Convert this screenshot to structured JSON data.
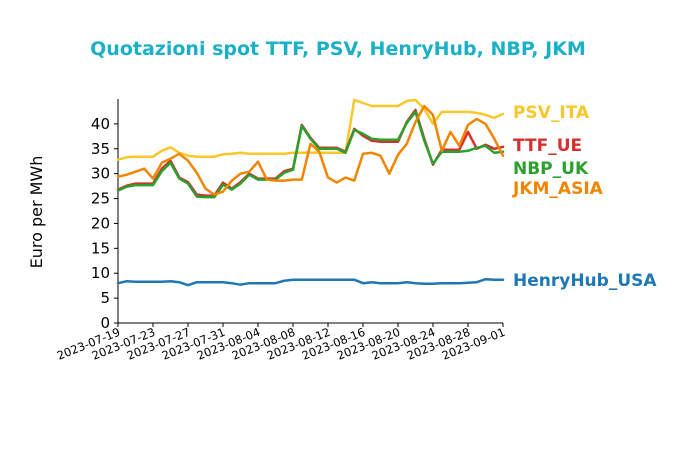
{
  "chart_data": {
    "type": "line",
    "title": "Quotazioni spot TTF, PSV, HenryHub, NBP, JKM",
    "xlabel": "",
    "ylabel": "Euro per MWh",
    "ylim": [
      0,
      45
    ],
    "yticks": [
      0,
      5,
      10,
      15,
      20,
      25,
      30,
      35,
      40
    ],
    "xlim": [
      "2023-07-19",
      "2023-09-01"
    ],
    "xticks": [
      "2023-07-19",
      "2023-07-23",
      "2023-07-27",
      "2023-07-31",
      "2023-08-04",
      "2023-08-08",
      "2023-08-12",
      "2023-08-16",
      "2023-08-20",
      "2023-08-24",
      "2023-08-28",
      "2023-09-01"
    ],
    "grid": false,
    "legend": "right-end-labels",
    "colors": {
      "title": "#1ab0c8",
      "PSV_ITA": "#f9c72a",
      "TTF_UE": "#d62f2f",
      "NBP_UK": "#2ca02c",
      "JKM_ASIA": "#f28500",
      "HenryHub_USA": "#1f77b4"
    },
    "series": [
      {
        "name": "PSV_ITA",
        "points": [
          [
            "2023-07-19",
            32.8
          ],
          [
            "2023-07-20",
            33.3
          ],
          [
            "2023-07-21",
            33.4
          ],
          [
            "2023-07-22",
            33.4
          ],
          [
            "2023-07-23",
            33.4
          ],
          [
            "2023-07-24",
            34.6
          ],
          [
            "2023-07-25",
            35.3
          ],
          [
            "2023-07-26",
            34.2
          ],
          [
            "2023-07-27",
            33.6
          ],
          [
            "2023-07-28",
            33.4
          ],
          [
            "2023-07-29",
            33.4
          ],
          [
            "2023-07-30",
            33.4
          ],
          [
            "2023-07-31",
            33.9
          ],
          [
            "2023-08-01",
            34.0
          ],
          [
            "2023-08-02",
            34.2
          ],
          [
            "2023-08-03",
            34.0
          ],
          [
            "2023-08-04",
            34.0
          ],
          [
            "2023-08-05",
            34.0
          ],
          [
            "2023-08-06",
            34.0
          ],
          [
            "2023-08-07",
            34.0
          ],
          [
            "2023-08-08",
            34.2
          ],
          [
            "2023-08-09",
            34.2
          ],
          [
            "2023-08-10",
            34.2
          ],
          [
            "2023-08-11",
            34.2
          ],
          [
            "2023-08-12",
            34.2
          ],
          [
            "2023-08-13",
            34.2
          ],
          [
            "2023-08-14",
            34.2
          ],
          [
            "2023-08-15",
            44.8
          ],
          [
            "2023-08-16",
            44.2
          ],
          [
            "2023-08-17",
            43.6
          ],
          [
            "2023-08-18",
            43.6
          ],
          [
            "2023-08-19",
            43.6
          ],
          [
            "2023-08-20",
            43.6
          ],
          [
            "2023-08-21",
            44.6
          ],
          [
            "2023-08-22",
            44.8
          ],
          [
            "2023-08-23",
            43.0
          ],
          [
            "2023-08-24",
            40.0
          ],
          [
            "2023-08-25",
            42.4
          ],
          [
            "2023-08-26",
            42.4
          ],
          [
            "2023-08-27",
            42.4
          ],
          [
            "2023-08-28",
            42.4
          ],
          [
            "2023-08-29",
            42.2
          ],
          [
            "2023-08-30",
            41.8
          ],
          [
            "2023-08-31",
            41.2
          ],
          [
            "2023-09-01",
            42.0
          ]
        ]
      },
      {
        "name": "TTF_UE",
        "points": [
          [
            "2023-07-19",
            26.8
          ],
          [
            "2023-07-20",
            27.6
          ],
          [
            "2023-07-21",
            28.0
          ],
          [
            "2023-07-22",
            28.0
          ],
          [
            "2023-07-23",
            28.0
          ],
          [
            "2023-07-24",
            31.0
          ],
          [
            "2023-07-25",
            32.6
          ],
          [
            "2023-07-26",
            29.2
          ],
          [
            "2023-07-27",
            28.3
          ],
          [
            "2023-07-28",
            25.8
          ],
          [
            "2023-07-29",
            25.6
          ],
          [
            "2023-07-30",
            25.6
          ],
          [
            "2023-07-31",
            28.2
          ],
          [
            "2023-08-01",
            27.0
          ],
          [
            "2023-08-02",
            28.3
          ],
          [
            "2023-08-03",
            30.0
          ],
          [
            "2023-08-04",
            29.0
          ],
          [
            "2023-08-05",
            29.0
          ],
          [
            "2023-08-06",
            29.0
          ],
          [
            "2023-08-07",
            30.5
          ],
          [
            "2023-08-08",
            31.0
          ],
          [
            "2023-08-09",
            39.8
          ],
          [
            "2023-08-10",
            37.2
          ],
          [
            "2023-08-11",
            35.2
          ],
          [
            "2023-08-12",
            35.2
          ],
          [
            "2023-08-13",
            35.2
          ],
          [
            "2023-08-14",
            34.4
          ],
          [
            "2023-08-15",
            39.0
          ],
          [
            "2023-08-16",
            37.6
          ],
          [
            "2023-08-17",
            36.6
          ],
          [
            "2023-08-18",
            36.4
          ],
          [
            "2023-08-19",
            36.4
          ],
          [
            "2023-08-20",
            36.4
          ],
          [
            "2023-08-21",
            40.4
          ],
          [
            "2023-08-22",
            42.8
          ],
          [
            "2023-08-23",
            37.0
          ],
          [
            "2023-08-24",
            31.8
          ],
          [
            "2023-08-25",
            34.8
          ],
          [
            "2023-08-26",
            34.8
          ],
          [
            "2023-08-27",
            34.8
          ],
          [
            "2023-08-28",
            38.4
          ],
          [
            "2023-08-29",
            35.0
          ],
          [
            "2023-08-30",
            35.8
          ],
          [
            "2023-08-31",
            35.0
          ],
          [
            "2023-09-01",
            35.4
          ]
        ]
      },
      {
        "name": "NBP_UK",
        "points": [
          [
            "2023-07-19",
            26.6
          ],
          [
            "2023-07-20",
            27.4
          ],
          [
            "2023-07-21",
            27.7
          ],
          [
            "2023-07-22",
            27.7
          ],
          [
            "2023-07-23",
            27.7
          ],
          [
            "2023-07-24",
            30.5
          ],
          [
            "2023-07-25",
            32.2
          ],
          [
            "2023-07-26",
            29.0
          ],
          [
            "2023-07-27",
            28.0
          ],
          [
            "2023-07-28",
            25.4
          ],
          [
            "2023-07-29",
            25.3
          ],
          [
            "2023-07-30",
            25.3
          ],
          [
            "2023-07-31",
            27.8
          ],
          [
            "2023-08-01",
            26.8
          ],
          [
            "2023-08-02",
            28.0
          ],
          [
            "2023-08-03",
            29.8
          ],
          [
            "2023-08-04",
            28.8
          ],
          [
            "2023-08-05",
            28.8
          ],
          [
            "2023-08-06",
            28.8
          ],
          [
            "2023-08-07",
            30.2
          ],
          [
            "2023-08-08",
            30.8
          ],
          [
            "2023-08-09",
            39.6
          ],
          [
            "2023-08-10",
            37.0
          ],
          [
            "2023-08-11",
            35.0
          ],
          [
            "2023-08-12",
            35.0
          ],
          [
            "2023-08-13",
            35.0
          ],
          [
            "2023-08-14",
            34.2
          ],
          [
            "2023-08-15",
            38.8
          ],
          [
            "2023-08-16",
            38.0
          ],
          [
            "2023-08-17",
            37.0
          ],
          [
            "2023-08-18",
            36.8
          ],
          [
            "2023-08-19",
            36.8
          ],
          [
            "2023-08-20",
            36.8
          ],
          [
            "2023-08-21",
            40.2
          ],
          [
            "2023-08-22",
            42.4
          ],
          [
            "2023-08-23",
            36.6
          ],
          [
            "2023-08-24",
            32.0
          ],
          [
            "2023-08-25",
            34.4
          ],
          [
            "2023-08-26",
            34.4
          ],
          [
            "2023-08-27",
            34.4
          ],
          [
            "2023-08-28",
            34.6
          ],
          [
            "2023-08-29",
            35.2
          ],
          [
            "2023-08-30",
            35.6
          ],
          [
            "2023-08-31",
            34.2
          ],
          [
            "2023-09-01",
            34.4
          ]
        ]
      },
      {
        "name": "JKM_ASIA",
        "points": [
          [
            "2023-07-19",
            29.4
          ],
          [
            "2023-07-20",
            29.8
          ],
          [
            "2023-07-21",
            30.4
          ],
          [
            "2023-07-22",
            31.0
          ],
          [
            "2023-07-23",
            29.0
          ],
          [
            "2023-07-24",
            32.2
          ],
          [
            "2023-07-25",
            33.0
          ],
          [
            "2023-07-26",
            34.0
          ],
          [
            "2023-07-27",
            32.6
          ],
          [
            "2023-07-28",
            30.2
          ],
          [
            "2023-07-29",
            27.0
          ],
          [
            "2023-07-30",
            25.8
          ],
          [
            "2023-07-31",
            26.4
          ],
          [
            "2023-08-01",
            28.6
          ],
          [
            "2023-08-02",
            30.0
          ],
          [
            "2023-08-03",
            30.4
          ],
          [
            "2023-08-04",
            32.4
          ],
          [
            "2023-08-05",
            28.8
          ],
          [
            "2023-08-06",
            28.6
          ],
          [
            "2023-08-07",
            28.6
          ],
          [
            "2023-08-08",
            28.8
          ],
          [
            "2023-08-09",
            28.8
          ],
          [
            "2023-08-10",
            36.0
          ],
          [
            "2023-08-11",
            34.4
          ],
          [
            "2023-08-12",
            29.2
          ],
          [
            "2023-08-13",
            28.2
          ],
          [
            "2023-08-14",
            29.2
          ],
          [
            "2023-08-15",
            28.6
          ],
          [
            "2023-08-16",
            34.0
          ],
          [
            "2023-08-17",
            34.2
          ],
          [
            "2023-08-18",
            33.6
          ],
          [
            "2023-08-19",
            30.0
          ],
          [
            "2023-08-20",
            33.8
          ],
          [
            "2023-08-21",
            36.0
          ],
          [
            "2023-08-22",
            40.4
          ],
          [
            "2023-08-23",
            43.6
          ],
          [
            "2023-08-24",
            41.8
          ],
          [
            "2023-08-25",
            34.6
          ],
          [
            "2023-08-26",
            38.4
          ],
          [
            "2023-08-27",
            35.6
          ],
          [
            "2023-08-28",
            39.8
          ],
          [
            "2023-08-29",
            41.0
          ],
          [
            "2023-08-30",
            40.0
          ],
          [
            "2023-08-31",
            37.0
          ],
          [
            "2023-09-01",
            33.6
          ]
        ]
      },
      {
        "name": "HenryHub_USA",
        "points": [
          [
            "2023-07-19",
            8.0
          ],
          [
            "2023-07-20",
            8.4
          ],
          [
            "2023-07-21",
            8.3
          ],
          [
            "2023-07-22",
            8.3
          ],
          [
            "2023-07-23",
            8.3
          ],
          [
            "2023-07-24",
            8.3
          ],
          [
            "2023-07-25",
            8.4
          ],
          [
            "2023-07-26",
            8.2
          ],
          [
            "2023-07-27",
            7.6
          ],
          [
            "2023-07-28",
            8.2
          ],
          [
            "2023-07-29",
            8.2
          ],
          [
            "2023-07-30",
            8.2
          ],
          [
            "2023-07-31",
            8.2
          ],
          [
            "2023-08-01",
            8.0
          ],
          [
            "2023-08-02",
            7.7
          ],
          [
            "2023-08-03",
            8.0
          ],
          [
            "2023-08-04",
            8.0
          ],
          [
            "2023-08-05",
            8.0
          ],
          [
            "2023-08-06",
            8.0
          ],
          [
            "2023-08-07",
            8.5
          ],
          [
            "2023-08-08",
            8.7
          ],
          [
            "2023-08-09",
            8.7
          ],
          [
            "2023-08-10",
            8.7
          ],
          [
            "2023-08-11",
            8.7
          ],
          [
            "2023-08-12",
            8.7
          ],
          [
            "2023-08-13",
            8.7
          ],
          [
            "2023-08-14",
            8.7
          ],
          [
            "2023-08-15",
            8.7
          ],
          [
            "2023-08-16",
            8.0
          ],
          [
            "2023-08-17",
            8.2
          ],
          [
            "2023-08-18",
            8.0
          ],
          [
            "2023-08-19",
            8.0
          ],
          [
            "2023-08-20",
            8.0
          ],
          [
            "2023-08-21",
            8.2
          ],
          [
            "2023-08-22",
            8.0
          ],
          [
            "2023-08-23",
            7.9
          ],
          [
            "2023-08-24",
            7.9
          ],
          [
            "2023-08-25",
            8.0
          ],
          [
            "2023-08-26",
            8.0
          ],
          [
            "2023-08-27",
            8.0
          ],
          [
            "2023-08-28",
            8.1
          ],
          [
            "2023-08-29",
            8.2
          ],
          [
            "2023-08-30",
            8.8
          ],
          [
            "2023-08-31",
            8.7
          ],
          [
            "2023-09-01",
            8.7
          ]
        ]
      }
    ]
  }
}
